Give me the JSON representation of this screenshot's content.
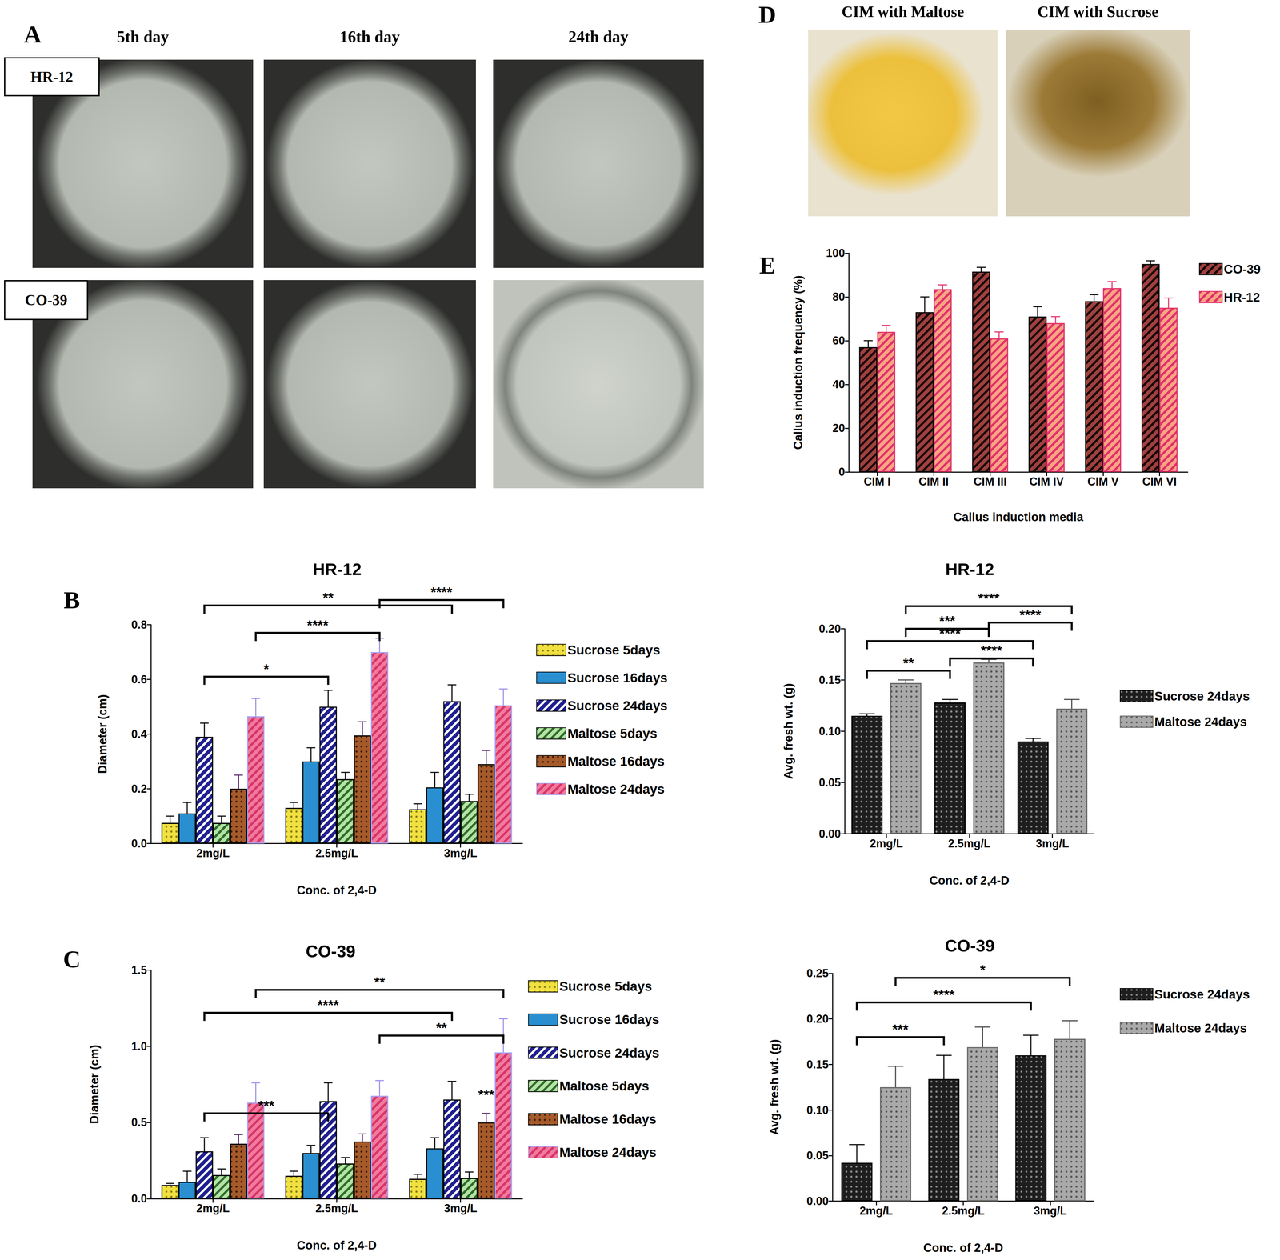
{
  "panel_labels": [
    "A",
    "B",
    "C",
    "D",
    "E"
  ],
  "photos": {
    "A": {
      "columns": [
        "5th day",
        "16th day",
        "24th day"
      ],
      "rows": [
        "HR-12",
        "CO-39"
      ]
    },
    "D": {
      "columns": [
        "CIM with Maltose",
        "CIM with Sucrose"
      ]
    }
  },
  "chart_data": [
    {
      "type": "bar",
      "x_label": "Callus induction media",
      "y_label": "Callus induction frequency (%)",
      "categories": [
        "CIM I",
        "CIM II",
        "CIM III",
        "CIM IV",
        "CIM V",
        "CIM VI"
      ],
      "series": [
        {
          "name": "CO-39",
          "color": "#a0413f",
          "values": [
            57,
            73,
            91.5,
            71,
            78,
            95
          ],
          "errors": [
            3,
            7,
            2,
            4.5,
            3,
            1.5
          ]
        },
        {
          "name": "HR-12",
          "color": "#f9a583",
          "values": [
            64,
            83.5,
            61,
            68,
            84,
            75
          ],
          "errors": [
            3,
            2,
            3,
            3,
            3,
            4.5
          ]
        }
      ],
      "ylim": [
        0,
        100
      ],
      "yticks": [
        0,
        20,
        40,
        60,
        80,
        100
      ],
      "grid": false,
      "legend": "right"
    },
    {
      "type": "bar",
      "title": "HR-12",
      "x_label": "Conc. of 2,4-D",
      "y_label": "Diameter (cm)",
      "categories": [
        "2mg/L",
        "2.5mg/L",
        "3mg/L"
      ],
      "series": [
        {
          "name": "Sucrose 5days",
          "color": "#f0e040",
          "values": [
            0.075,
            0.13,
            0.125
          ],
          "errors": [
            0.025,
            0.02,
            0.02
          ]
        },
        {
          "name": "Sucrose 16days",
          "color": "#2a8fd0",
          "values": [
            0.11,
            0.3,
            0.205
          ],
          "errors": [
            0.04,
            0.05,
            0.055
          ]
        },
        {
          "name": "Sucrose 24days",
          "color": "#1f1f8f",
          "values": [
            0.39,
            0.5,
            0.52
          ],
          "errors": [
            0.05,
            0.06,
            0.06
          ]
        },
        {
          "name": "Maltose 5days",
          "color": "#b5e3a3",
          "values": [
            0.075,
            0.235,
            0.155
          ],
          "errors": [
            0.025,
            0.025,
            0.025
          ]
        },
        {
          "name": "Maltose 16days",
          "color": "#a55a2a",
          "values": [
            0.2,
            0.395,
            0.29
          ],
          "errors": [
            0.05,
            0.05,
            0.05
          ]
        },
        {
          "name": "Maltose 24days",
          "color": "#f27a9b",
          "values": [
            0.465,
            0.7,
            0.505
          ],
          "errors": [
            0.065,
            0.05,
            0.06
          ]
        }
      ],
      "ylim": [
        0,
        0.8
      ],
      "yticks": [
        {
          "value": 0,
          "label": "0.0"
        },
        {
          "value": 0.2,
          "label": "0.2"
        },
        {
          "value": 0.4,
          "label": "0.4"
        },
        {
          "value": 0.6,
          "label": "0.6"
        },
        {
          "value": 0.8,
          "label": "0.8"
        }
      ],
      "grid": false,
      "legend": "right",
      "annotations": [
        {
          "label": "*",
          "from": [
            0,
            2
          ],
          "to": [
            1,
            2
          ],
          "y": 0.61
        },
        {
          "label": "****",
          "from": [
            0,
            5
          ],
          "to": [
            1,
            5
          ],
          "y": 0.77
        },
        {
          "label": "**",
          "from": [
            0,
            2
          ],
          "to": [
            2,
            2
          ],
          "y": 0.87
        },
        {
          "label": "****",
          "from": [
            1,
            5
          ],
          "to": [
            2,
            5
          ],
          "y": 0.89
        }
      ]
    },
    {
      "type": "bar",
      "title": "CO-39",
      "x_label": "Conc. of 2,4-D",
      "y_label": "Diameter (cm)",
      "categories": [
        "2mg/L",
        "2.5mg/L",
        "3mg/L"
      ],
      "series": [
        {
          "name": "Sucrose 5days",
          "color": "#f0e040",
          "values": [
            0.09,
            0.15,
            0.13
          ],
          "errors": [
            0.01,
            0.03,
            0.03
          ]
        },
        {
          "name": "Sucrose 16days",
          "color": "#2a8fd0",
          "values": [
            0.11,
            0.3,
            0.33
          ],
          "errors": [
            0.07,
            0.05,
            0.07
          ]
        },
        {
          "name": "Sucrose 24days",
          "color": "#1f1f8f",
          "values": [
            0.31,
            0.64,
            0.65
          ],
          "errors": [
            0.09,
            0.12,
            0.12
          ]
        },
        {
          "name": "Maltose 5days",
          "color": "#b5e3a3",
          "values": [
            0.155,
            0.23,
            0.135
          ],
          "errors": [
            0.04,
            0.04,
            0.04
          ]
        },
        {
          "name": "Maltose 16days",
          "color": "#a55a2a",
          "values": [
            0.36,
            0.375,
            0.5
          ],
          "errors": [
            0.06,
            0.05,
            0.06
          ]
        },
        {
          "name": "Maltose 24days",
          "color": "#f27a9b",
          "values": [
            0.63,
            0.675,
            0.96
          ],
          "errors": [
            0.13,
            0.1,
            0.22
          ]
        }
      ],
      "ylim": [
        0,
        1.5
      ],
      "yticks": [
        {
          "value": 0,
          "label": "0.0"
        },
        {
          "value": 0.5,
          "label": "0.5"
        },
        {
          "value": 1,
          "label": "1.0"
        },
        {
          "value": 1.5,
          "label": "1.5"
        }
      ],
      "grid": false,
      "legend": "right",
      "annotations": [
        {
          "label": "***",
          "from": [
            0,
            2
          ],
          "to": [
            1,
            2
          ],
          "y": 0.56
        },
        {
          "label": "****",
          "from": [
            0,
            2
          ],
          "to": [
            2,
            2
          ],
          "y": 1.22
        },
        {
          "label": "**",
          "from": [
            0,
            5
          ],
          "to": [
            2,
            5
          ],
          "y": 1.37
        },
        {
          "label": "**",
          "from": [
            1,
            5
          ],
          "to": [
            2,
            5
          ],
          "y": 1.07
        },
        {
          "label": "***",
          "from": [
            2,
            4
          ],
          "to": [
            2,
            4
          ],
          "y": 0.63
        }
      ]
    },
    {
      "type": "bar",
      "title": "HR-12",
      "x_label": "Conc. of 2,4-D",
      "y_label": "Avg. fresh wt. (g)",
      "categories": [
        "2mg/L",
        "2.5mg/L",
        "3mg/L"
      ],
      "series": [
        {
          "name": "Sucrose 24days",
          "color": "#1e1e1e",
          "values": [
            0.115,
            0.128,
            0.09
          ],
          "errors": [
            0.002,
            0.003,
            0.003
          ]
        },
        {
          "name": "Maltose 24days",
          "color": "#a9a9a9",
          "values": [
            0.147,
            0.167,
            0.122
          ],
          "errors": [
            0.003,
            0.003,
            0.009
          ]
        }
      ],
      "ylim": [
        0,
        0.2
      ],
      "yticks": [
        {
          "value": 0,
          "label": "0.00"
        },
        {
          "value": 0.05,
          "label": "0.05"
        },
        {
          "value": 0.1,
          "label": "0.10"
        },
        {
          "value": 0.15,
          "label": "0.15"
        },
        {
          "value": 0.2,
          "label": "0.20"
        }
      ],
      "grid": false,
      "legend": "right",
      "annotations": [
        {
          "label": "**",
          "from": [
            0,
            0
          ],
          "to": [
            1,
            0
          ],
          "y": 0.159
        },
        {
          "label": "****",
          "from": [
            0,
            0
          ],
          "to": [
            2,
            0
          ],
          "y": 0.188
        },
        {
          "label": "***",
          "from": [
            0,
            1
          ],
          "to": [
            1,
            1
          ],
          "y": 0.2
        },
        {
          "label": "****",
          "from": [
            0,
            1
          ],
          "to": [
            2,
            1
          ],
          "y": 0.222
        },
        {
          "label": "****",
          "from": [
            1,
            1
          ],
          "to": [
            2,
            1
          ],
          "y": 0.206
        },
        {
          "label": "****",
          "from": [
            1,
            0
          ],
          "to": [
            2,
            0
          ],
          "y": 0.171
        }
      ]
    },
    {
      "type": "bar",
      "title": "CO-39",
      "x_label": "Conc. of 2,4-D",
      "y_label": "Avg. fresh wt. (g)",
      "categories": [
        "2mg/L",
        "2.5mg/L",
        "3mg/L"
      ],
      "series": [
        {
          "name": "Sucrose 24days",
          "color": "#1e1e1e",
          "values": [
            0.042,
            0.134,
            0.16
          ],
          "errors": [
            0.02,
            0.026,
            0.022
          ]
        },
        {
          "name": "Maltose 24days",
          "color": "#a9a9a9",
          "values": [
            0.125,
            0.169,
            0.178
          ],
          "errors": [
            0.023,
            0.022,
            0.02
          ]
        }
      ],
      "ylim": [
        0,
        0.25
      ],
      "yticks": [
        {
          "value": 0,
          "label": "0.00"
        },
        {
          "value": 0.05,
          "label": "0.05"
        },
        {
          "value": 0.1,
          "label": "0.10"
        },
        {
          "value": 0.15,
          "label": "0.15"
        },
        {
          "value": 0.2,
          "label": "0.20"
        },
        {
          "value": 0.25,
          "label": "0.25"
        }
      ],
      "grid": false,
      "legend": "right",
      "annotations": [
        {
          "label": "***",
          "from": [
            0,
            0
          ],
          "to": [
            1,
            0
          ],
          "y": 0.18
        },
        {
          "label": "****",
          "from": [
            0,
            0
          ],
          "to": [
            2,
            0
          ],
          "y": 0.218
        },
        {
          "label": "*",
          "from": [
            0,
            1
          ],
          "to": [
            2,
            1
          ],
          "y": 0.245
        }
      ]
    }
  ]
}
